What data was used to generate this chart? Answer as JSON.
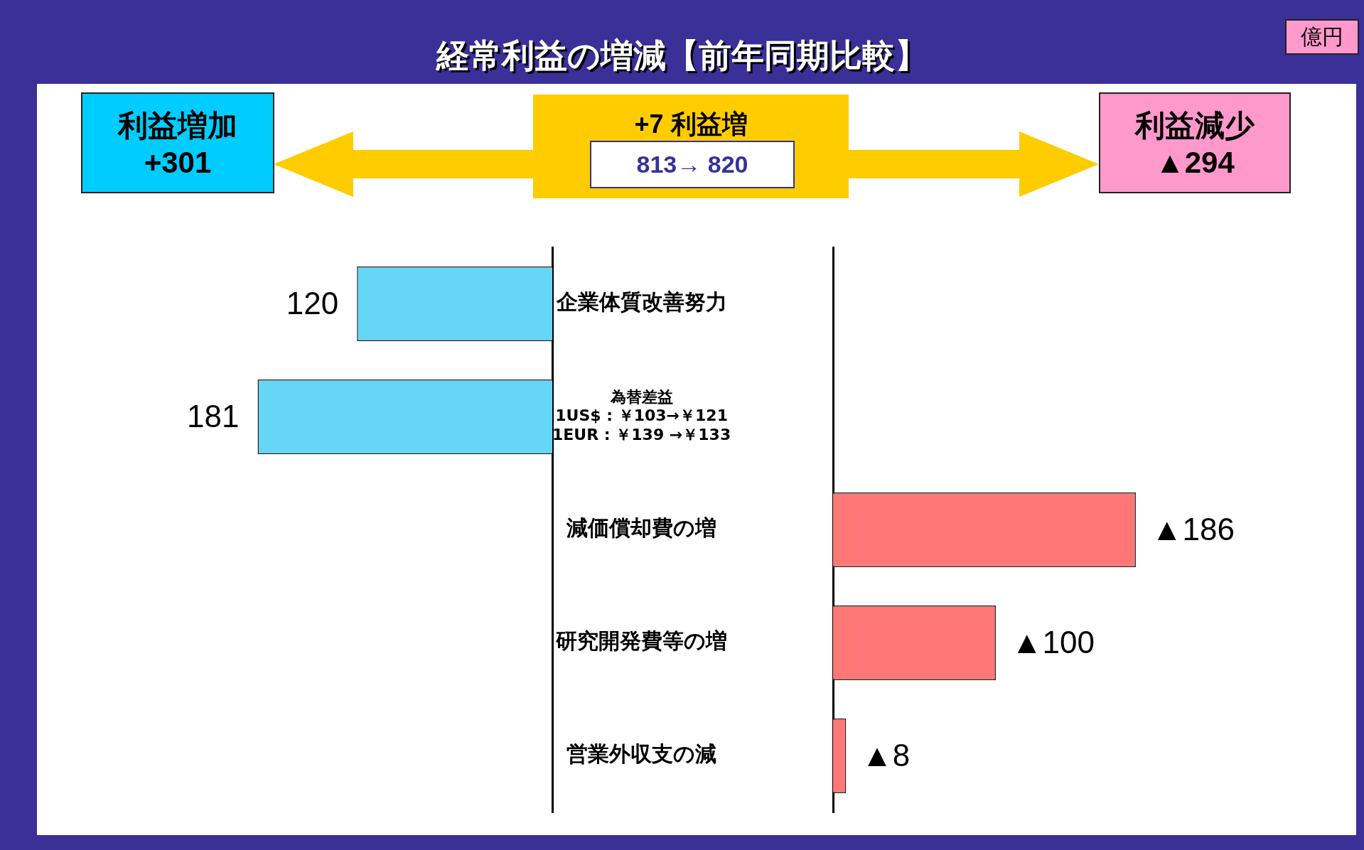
{
  "chart_data": [
    {
      "type": "bar",
      "orientation": "horizontal",
      "title": "経常利益の増減【前年同期比較】",
      "annotations": [
        "億円",
        "利益増加",
        "+301",
        "+7 利益増",
        "813→ 820",
        "利益減少",
        "▲294"
      ],
      "categories": [
        "企業体質改善努力",
        "為替差益\n1US$ : ￥103→￥121\n1EUR : ￥139 →￥133",
        "減価償却費の増",
        "研究開発費等の増",
        "営業外収支の減"
      ],
      "values": [
        120,
        181,
        null,
        null,
        null
      ],
      "color": "#66d6f7",
      "data_labels": true,
      "tick_labels": "y",
      "grid": false,
      "legend": false
    },
    {
      "type": "bar",
      "orientation": "horizontal",
      "values": [
        null,
        null,
        186,
        100,
        8
      ],
      "color": "#ff7777",
      "value_labels": [
        null,
        null,
        "▲186",
        "▲100",
        "▲8"
      ],
      "tick_labels": false,
      "grid": false,
      "legend": false
    }
  ]
}
